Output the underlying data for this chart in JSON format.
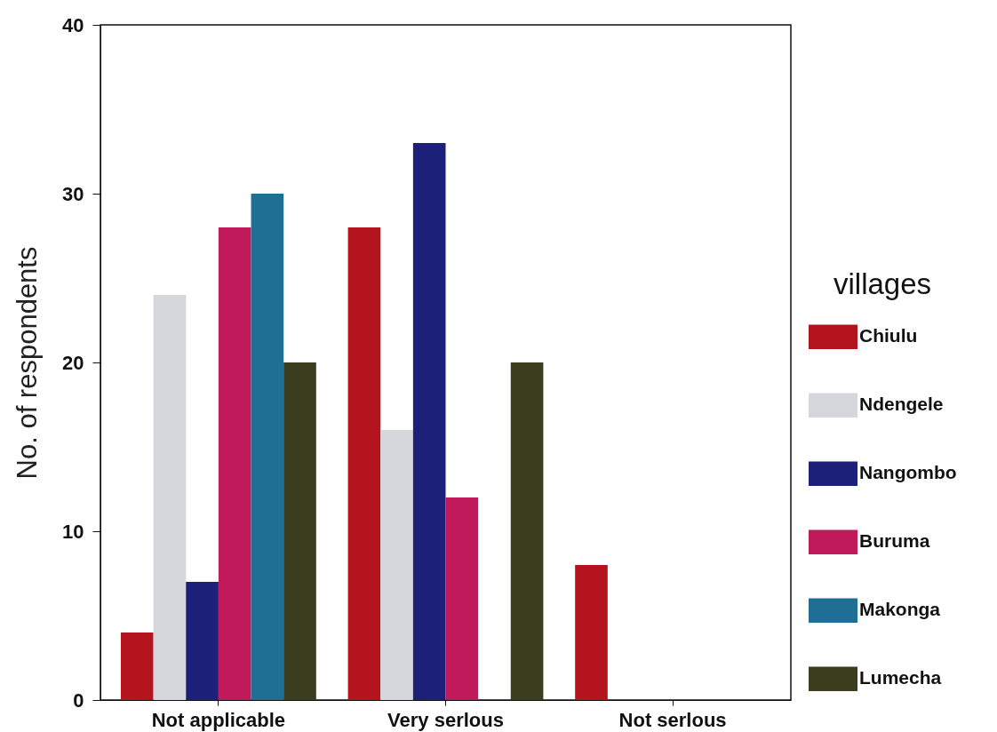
{
  "chart_data": {
    "type": "bar",
    "ylabel": "No. of respondents",
    "legend_title": "villages",
    "categories": [
      "Not applicable",
      "Very serlous",
      "Not serlous"
    ],
    "series": [
      {
        "name": "Chiulu",
        "color": "#b3141d",
        "values": [
          4,
          28,
          8
        ]
      },
      {
        "name": "Ndengele",
        "color": "#d6d7dc",
        "values": [
          24,
          16,
          0
        ]
      },
      {
        "name": "Nangombo",
        "color": "#1d2079",
        "values": [
          7,
          33,
          0
        ]
      },
      {
        "name": "Buruma",
        "color": "#c01a5b",
        "values": [
          28,
          12,
          0
        ]
      },
      {
        "name": "Makonga",
        "color": "#1f6f95",
        "values": [
          30,
          0,
          0
        ]
      },
      {
        "name": "Lumecha",
        "color": "#3c3c1f",
        "values": [
          20,
          20,
          0
        ]
      }
    ],
    "ylim": [
      0,
      40
    ],
    "yticks": [
      0,
      10,
      20,
      30,
      40
    ],
    "legend": "right"
  }
}
